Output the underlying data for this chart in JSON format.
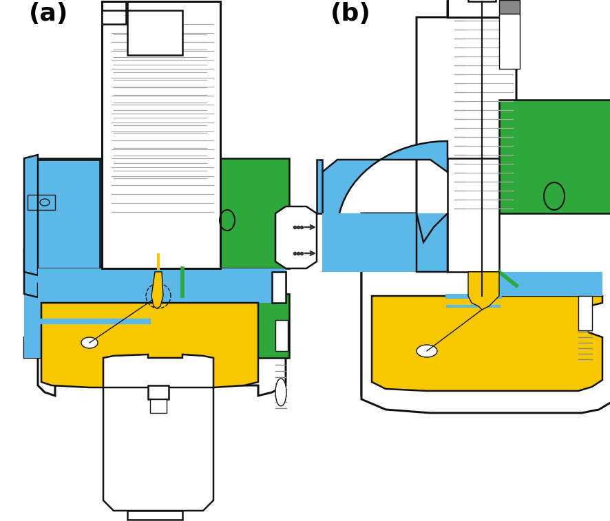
{
  "label_a": "(a)",
  "label_b": "(b)",
  "background_color": "#ffffff",
  "fig_width": 8.87,
  "fig_height": 7.57,
  "dpi": 100,
  "colors": {
    "blue": "#5bb8e8",
    "green": "#2ea83a",
    "yellow": "#f7c800",
    "outline": "#111111",
    "white": "#ffffff",
    "gray": "#888888",
    "dark_gray": "#555555",
    "light_gray": "#cccccc"
  }
}
